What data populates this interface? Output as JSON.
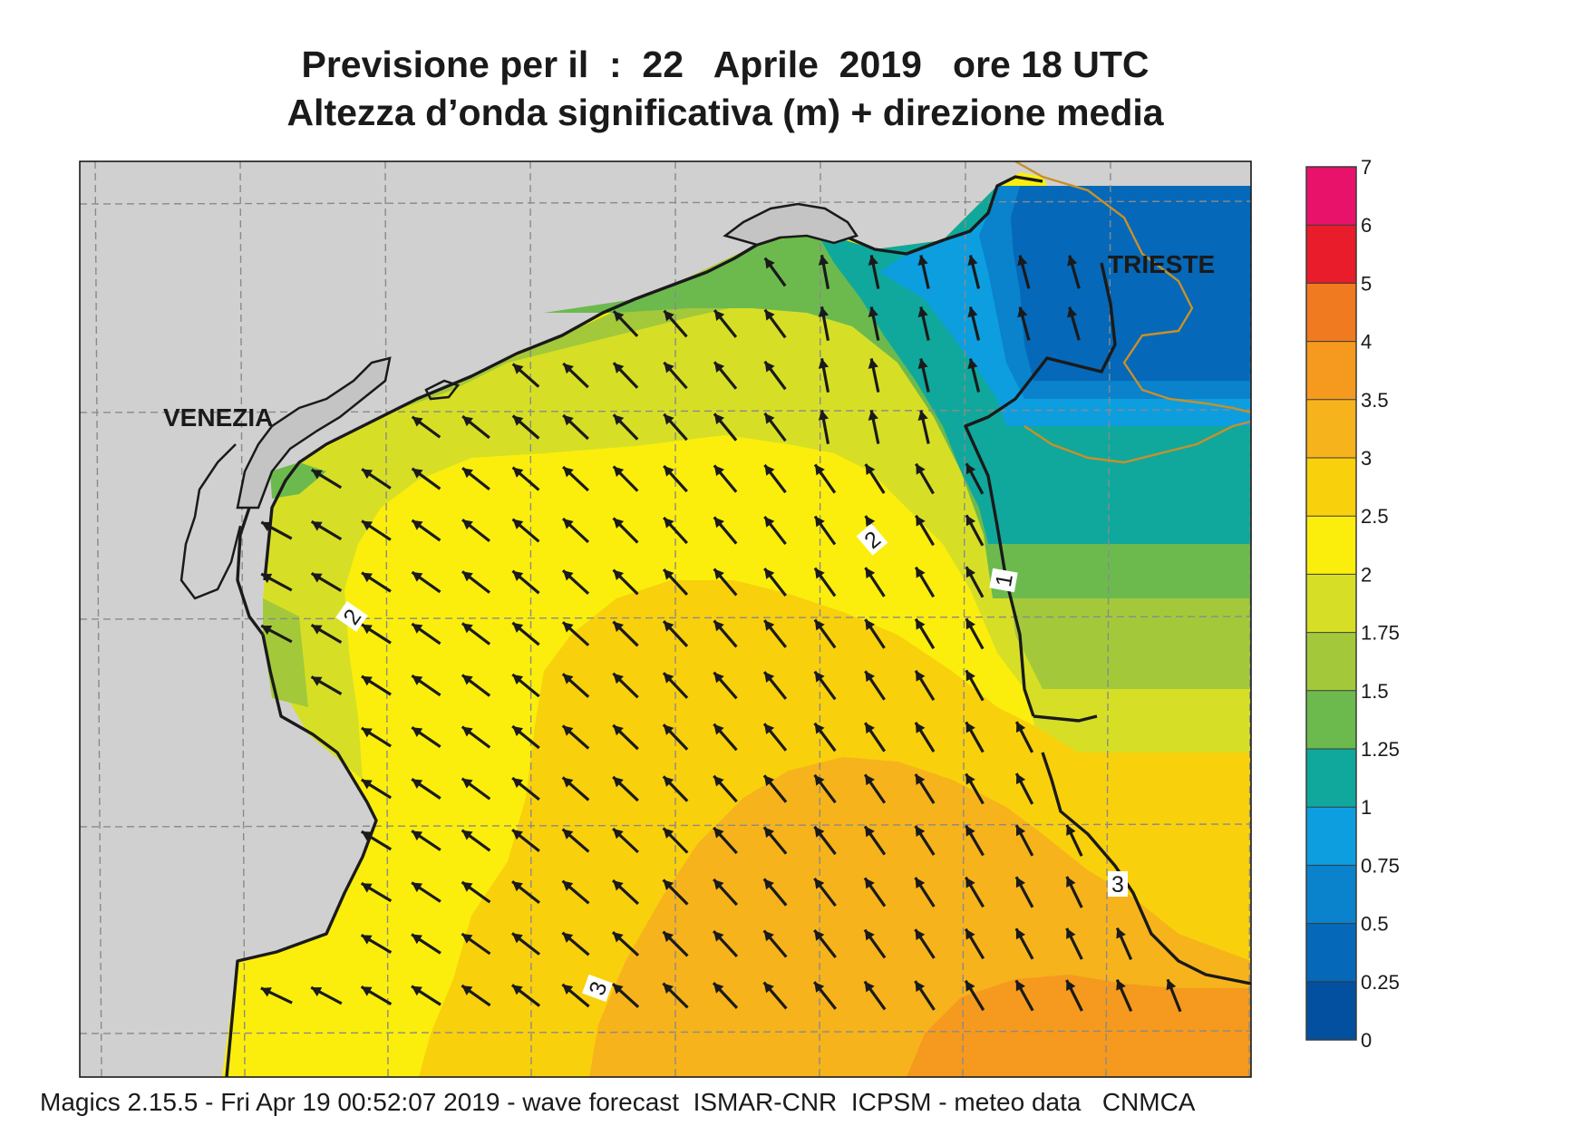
{
  "title": {
    "line1": "Previsione per il  :  22   Aprile  2019   ore 18 UTC",
    "line2": "Altezza d’onda significativa (m) + direzione media"
  },
  "places": [
    {
      "name": "VENEZIA"
    },
    {
      "name": "TRIESTE"
    }
  ],
  "contour_labels": [
    "2",
    "2",
    "1",
    "3",
    "3"
  ],
  "legend": {
    "ticks": [
      "7",
      "6",
      "5",
      "4",
      "3.5",
      "3",
      "2.5",
      "2",
      "1.75",
      "1.5",
      "1.25",
      "1",
      "0.75",
      "0.5",
      "0.25",
      "0"
    ],
    "colors": [
      "#e8126a",
      "#e81c2a",
      "#f07a20",
      "#f59a1e",
      "#f6b31c",
      "#f9d00c",
      "#fbee0c",
      "#d6df26",
      "#a3c93a",
      "#6cba4e",
      "#10a89c",
      "#0d9ee0",
      "#0a82cc",
      "#0568b8",
      "#0350a0"
    ]
  },
  "colors": {
    "land": "#d0d0d0",
    "coast": "#1a1a1a",
    "border": "#c8902a",
    "grid": "#8a8a8a",
    "arrow": "#1a1a1a"
  },
  "footer": "Magics 2.15.5 - Fri Apr 19 00:52:07 2019 - wave forecast  ISMAR-CNR  ICPSM - meteo data   CNMCA"
}
